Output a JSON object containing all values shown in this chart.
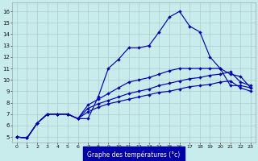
{
  "xlabel": "Graphe des températures (°c)",
  "bg_color": "#c8ecec",
  "grid_color": "#b0cccc",
  "line_color": "#0000bb",
  "xlabel_bg": "#0000aa",
  "xlim_min": -0.5,
  "xlim_max": 23.5,
  "ylim_min": 4.5,
  "ylim_max": 16.8,
  "yticks": [
    5,
    6,
    7,
    8,
    9,
    10,
    11,
    12,
    13,
    14,
    15,
    16
  ],
  "xticks": [
    0,
    1,
    2,
    3,
    4,
    5,
    6,
    7,
    8,
    9,
    10,
    11,
    12,
    13,
    14,
    15,
    16,
    17,
    18,
    19,
    20,
    21,
    22,
    23
  ],
  "series": [
    [
      5.0,
      4.9,
      6.2,
      7.0,
      7.0,
      7.0,
      6.6,
      6.6,
      8.5,
      11.0,
      11.8,
      12.8,
      12.8,
      13.0,
      14.2,
      15.5,
      16.0,
      14.7,
      14.2,
      12.0,
      11.0,
      9.5,
      9.5,
      9.3
    ],
    [
      5.0,
      4.9,
      6.2,
      7.0,
      7.0,
      7.0,
      6.6,
      7.8,
      8.3,
      8.8,
      9.3,
      9.8,
      10.0,
      10.2,
      10.5,
      10.8,
      11.0,
      11.0,
      11.0,
      11.0,
      11.0,
      10.5,
      10.3,
      9.3
    ],
    [
      5.0,
      4.9,
      6.2,
      7.0,
      7.0,
      7.0,
      6.6,
      7.5,
      7.9,
      8.2,
      8.5,
      8.8,
      9.0,
      9.2,
      9.5,
      9.7,
      9.9,
      10.1,
      10.2,
      10.4,
      10.5,
      10.7,
      9.8,
      9.5
    ],
    [
      5.0,
      4.9,
      6.2,
      7.0,
      7.0,
      7.0,
      6.6,
      7.2,
      7.6,
      7.9,
      8.1,
      8.3,
      8.5,
      8.7,
      8.9,
      9.0,
      9.2,
      9.4,
      9.5,
      9.6,
      9.8,
      9.9,
      9.3,
      9.0
    ]
  ]
}
